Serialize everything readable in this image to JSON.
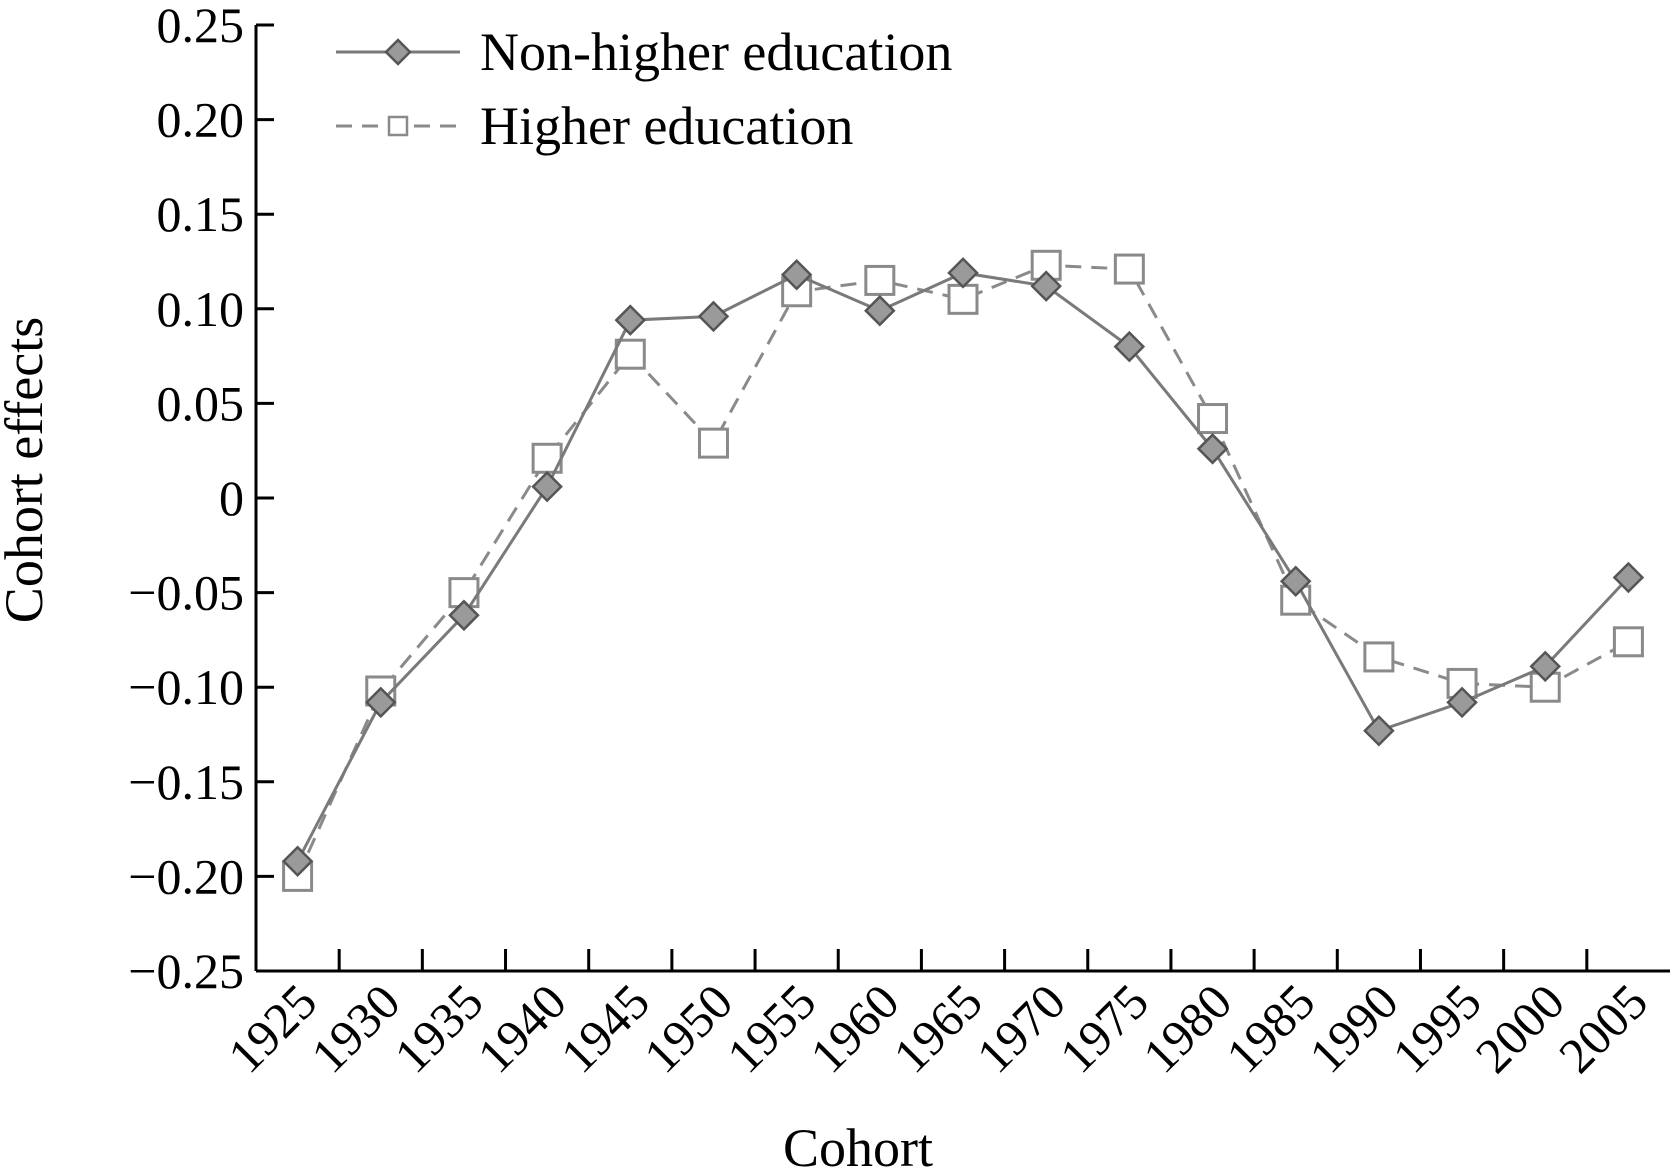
{
  "chart_data": {
    "type": "line",
    "title": "",
    "xlabel": "Cohort",
    "ylabel": "Cohort effects",
    "categories": [
      "1925",
      "1930",
      "1935",
      "1940",
      "1945",
      "1950",
      "1955",
      "1960",
      "1965",
      "1970",
      "1975",
      "1980",
      "1985",
      "1990",
      "1995",
      "2000",
      "2005"
    ],
    "ylim": [
      -0.25,
      0.25
    ],
    "yticks": [
      -0.25,
      -0.2,
      -0.15,
      -0.1,
      -0.05,
      0,
      0.05,
      0.1,
      0.15,
      0.2,
      0.25
    ],
    "ytick_labels": [
      "−0.25",
      "−0.20",
      "−0.15",
      "−0.10",
      "−0.05",
      "0",
      "0.05",
      "0.10",
      "0.15",
      "0.20",
      "0.25"
    ],
    "grid": false,
    "legend_position": "top-left",
    "series": [
      {
        "name": "Non-higher education",
        "marker": "diamond",
        "line": "solid",
        "color": "#7a7a7a",
        "fill": "#9a9a9a",
        "values": [
          -0.192,
          -0.108,
          -0.062,
          0.006,
          0.094,
          0.096,
          0.118,
          0.099,
          0.119,
          0.112,
          0.08,
          0.026,
          -0.044,
          -0.123,
          -0.108,
          -0.089,
          -0.042
        ]
      },
      {
        "name": "Higher education",
        "marker": "square-open",
        "line": "dashed",
        "color": "#8a8a8a",
        "fill": "#ffffff",
        "values": [
          -0.2,
          -0.102,
          -0.05,
          0.021,
          0.076,
          0.029,
          0.109,
          0.115,
          0.105,
          0.123,
          0.121,
          0.042,
          -0.054,
          -0.084,
          -0.098,
          -0.1,
          -0.076
        ]
      }
    ]
  }
}
